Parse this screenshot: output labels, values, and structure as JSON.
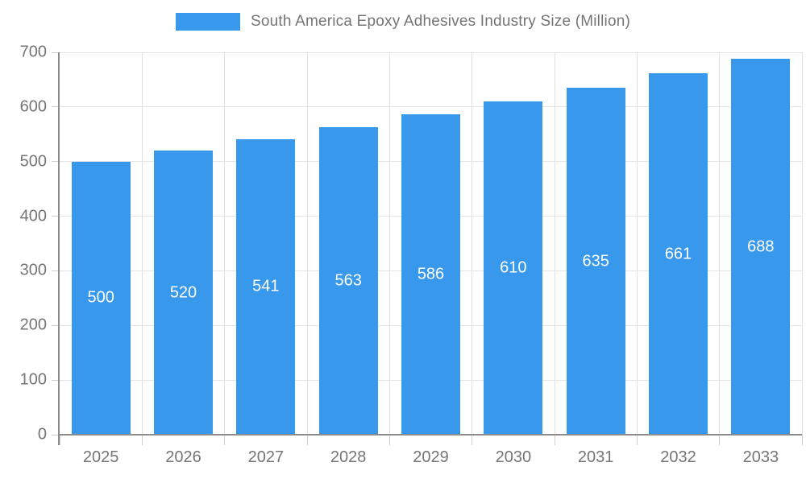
{
  "legend": {
    "label": "South America Epoxy Adhesives Industry Size (Million)",
    "swatch_color": "#3898EC"
  },
  "chart_data": {
    "type": "bar",
    "title": "South America Epoxy Adhesives Industry Size (Million)",
    "series_name": "South America Epoxy Adhesives Industry Size (Million)",
    "categories": [
      "2025",
      "2026",
      "2027",
      "2028",
      "2029",
      "2030",
      "2031",
      "2032",
      "2033"
    ],
    "values": [
      500,
      520,
      541,
      563,
      586,
      610,
      635,
      661,
      688
    ],
    "value_labels": [
      "500",
      "520",
      "541",
      "563",
      "586",
      "610",
      "635",
      "661",
      "688"
    ],
    "y_tick_labels": [
      "0",
      "100",
      "200",
      "300",
      "400",
      "500",
      "600",
      "700"
    ],
    "xlabel": "",
    "ylabel": "",
    "ylim": [
      0,
      700
    ],
    "ytick_step": 100,
    "grid": true,
    "legend_position": "top",
    "bar_color": "#3898EC",
    "value_label_color": "#FFFFFF",
    "axis_label_color": "#757575",
    "gridline_color": "#E5E5E5",
    "axis_line_color": "#8C8C8C"
  }
}
